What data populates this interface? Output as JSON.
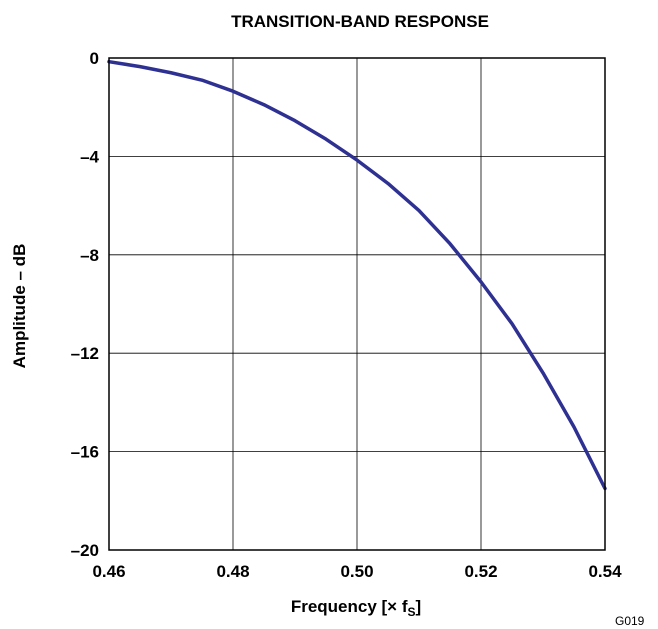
{
  "chart_data": {
    "type": "line",
    "title": "TRANSITION-BAND RESPONSE",
    "xlabel": "Frequency [× fS]",
    "xlabel_parts": {
      "main": "Frequency [× f",
      "sub": "S",
      "tail": "]"
    },
    "ylabel": "Amplitude – dB",
    "xlim": [
      0.46,
      0.54
    ],
    "ylim": [
      -20,
      0
    ],
    "xticks": [
      0.46,
      0.48,
      0.5,
      0.52,
      0.54
    ],
    "xtick_labels": [
      "0.46",
      "0.48",
      "0.50",
      "0.52",
      "0.54"
    ],
    "yticks": [
      0,
      -4,
      -8,
      -12,
      -16,
      -20
    ],
    "ytick_labels": [
      "0",
      "–4",
      "–8",
      "–12",
      "–16",
      "–20"
    ],
    "grid": true,
    "series": [
      {
        "color": "#2e3192",
        "x": [
          0.46,
          0.465,
          0.47,
          0.475,
          0.48,
          0.485,
          0.49,
          0.495,
          0.5,
          0.505,
          0.51,
          0.515,
          0.52,
          0.525,
          0.53,
          0.535,
          0.54
        ],
        "y": [
          -0.15,
          -0.35,
          -0.6,
          -0.9,
          -1.35,
          -1.9,
          -2.55,
          -3.3,
          -4.15,
          -5.1,
          -6.2,
          -7.55,
          -9.1,
          -10.8,
          -12.8,
          -15.0,
          -17.5
        ]
      }
    ]
  },
  "figure_code": "G019"
}
